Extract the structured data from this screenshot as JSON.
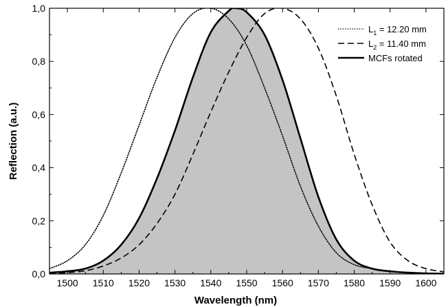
{
  "chart_data": {
    "type": "line",
    "xlabel": "Wavelength (nm)",
    "ylabel": "Reflection (a.u.)",
    "xlim": [
      1495,
      1605
    ],
    "ylim": [
      0.0,
      1.0
    ],
    "x_ticks": [
      1500,
      1510,
      1520,
      1530,
      1540,
      1550,
      1560,
      1570,
      1580,
      1590,
      1600
    ],
    "y_ticks": [
      0.0,
      0.2,
      0.4,
      0.6,
      0.8,
      1.0
    ],
    "x_tick_labels": [
      "1500",
      "1510",
      "1520",
      "1530",
      "1540",
      "1550",
      "1560",
      "1570",
      "1580",
      "1590",
      "1600"
    ],
    "y_tick_labels": [
      "0,0",
      "0,2",
      "0,4",
      "0,6",
      "0,8",
      "1,0"
    ],
    "legend_position": "top-right",
    "grid": false,
    "series": [
      {
        "name": "L1 = 12.20 mm",
        "legend": {
          "main": "L",
          "sub": "1",
          "rest": " = 12.20 mm"
        },
        "style": "dotted",
        "filled": false,
        "x": [
          1495,
          1500,
          1505,
          1510,
          1515,
          1520,
          1525,
          1530,
          1535,
          1540,
          1545,
          1550,
          1555,
          1560,
          1565,
          1570,
          1575,
          1580,
          1585,
          1590,
          1595,
          1600,
          1605
        ],
        "y": [
          0.02,
          0.05,
          0.11,
          0.22,
          0.38,
          0.56,
          0.74,
          0.89,
          0.98,
          1.0,
          0.96,
          0.86,
          0.7,
          0.52,
          0.33,
          0.18,
          0.08,
          0.035,
          0.02,
          0.01,
          0.005,
          0.003,
          0.002
        ]
      },
      {
        "name": "L2 = 11.40 mm",
        "legend": {
          "main": "L",
          "sub": "2",
          "rest": " = 11.40 mm"
        },
        "style": "dashed",
        "filled": false,
        "x": [
          1495,
          1500,
          1505,
          1510,
          1515,
          1520,
          1525,
          1530,
          1535,
          1540,
          1545,
          1550,
          1555,
          1560,
          1565,
          1570,
          1575,
          1580,
          1585,
          1590,
          1595,
          1600,
          1605
        ],
        "y": [
          0.0,
          0.005,
          0.012,
          0.03,
          0.06,
          0.11,
          0.19,
          0.3,
          0.45,
          0.61,
          0.76,
          0.89,
          0.98,
          1.0,
          0.96,
          0.85,
          0.67,
          0.45,
          0.26,
          0.12,
          0.05,
          0.02,
          0.008
        ]
      },
      {
        "name": "MCFs rotated",
        "legend": {
          "main": "MCFs rotated",
          "sub": "",
          "rest": ""
        },
        "style": "solid",
        "filled": true,
        "fill_color": "#c4c4c4",
        "x": [
          1495,
          1500,
          1505,
          1510,
          1515,
          1520,
          1525,
          1530,
          1535,
          1540,
          1545,
          1547,
          1550,
          1555,
          1560,
          1565,
          1570,
          1575,
          1580,
          1585,
          1590,
          1595,
          1600,
          1605
        ],
        "y": [
          0.005,
          0.01,
          0.02,
          0.05,
          0.11,
          0.21,
          0.36,
          0.54,
          0.74,
          0.91,
          0.99,
          1.0,
          0.985,
          0.9,
          0.73,
          0.51,
          0.29,
          0.13,
          0.05,
          0.02,
          0.01,
          0.005,
          0.002,
          0.001
        ]
      }
    ]
  }
}
